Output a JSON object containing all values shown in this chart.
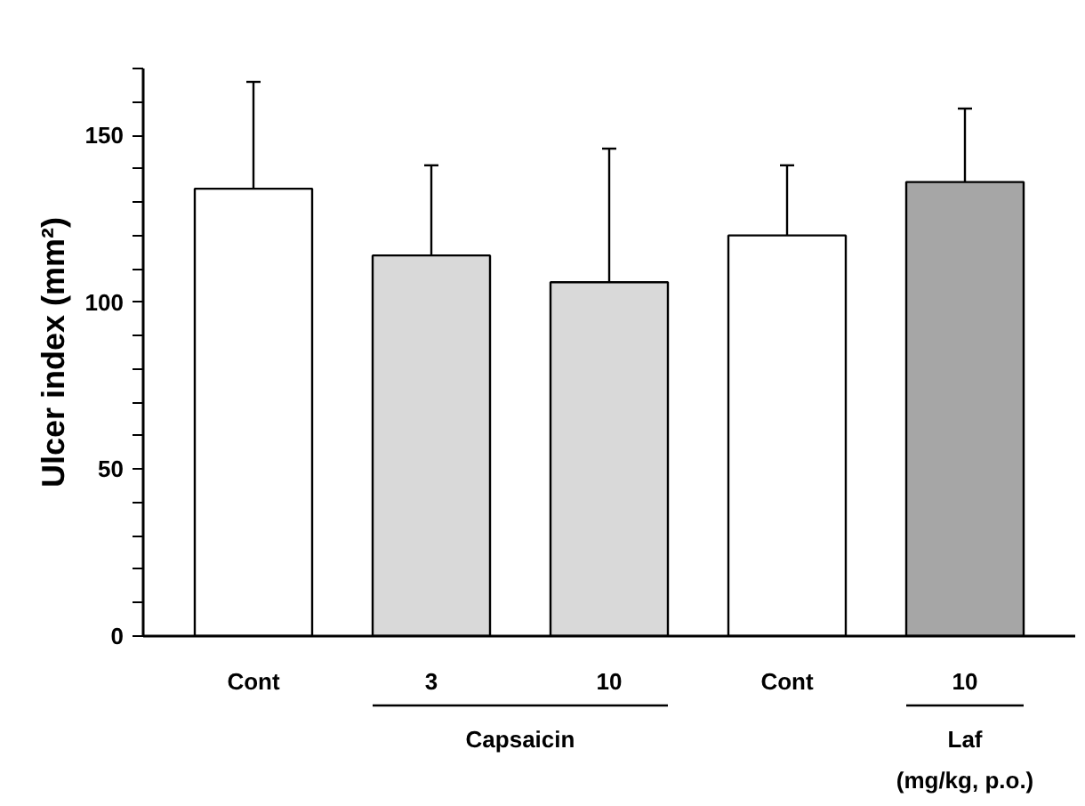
{
  "chart_data": {
    "type": "bar",
    "ylabel": "Ulcer index (mm²)",
    "categories": [
      "Cont",
      "3",
      "10",
      "Cont",
      "10"
    ],
    "values": [
      134,
      114,
      106,
      120,
      136
    ],
    "errors": [
      [
        134,
        166
      ],
      [
        114,
        141
      ],
      [
        106,
        146
      ],
      [
        120,
        141
      ],
      [
        136,
        158
      ]
    ],
    "colors": [
      "#ffffff",
      "#d9d9d9",
      "#d9d9d9",
      "#ffffff",
      "#a6a6a6"
    ],
    "ylim": [
      0,
      170
    ],
    "yticks": [
      0,
      {
        "value": 10,
        "label": null
      },
      {
        "value": 20,
        "label": null
      },
      {
        "value": 30,
        "label": null
      },
      {
        "value": 40,
        "label": null
      },
      50,
      {
        "value": 60,
        "label": null
      },
      {
        "value": 70,
        "label": null
      },
      {
        "value": 80,
        "label": null
      },
      {
        "value": 90,
        "label": null
      },
      100,
      {
        "value": 110,
        "label": null
      },
      {
        "value": 120,
        "label": null
      },
      {
        "value": 130,
        "label": null
      },
      {
        "value": 140,
        "label": null
      },
      150,
      {
        "value": 160,
        "label": null
      },
      {
        "value": 170,
        "label": null
      }
    ],
    "annotations": [
      "Capsaicin",
      "Laf",
      "(mg/kg, p.o.)"
    ],
    "grid": false
  }
}
